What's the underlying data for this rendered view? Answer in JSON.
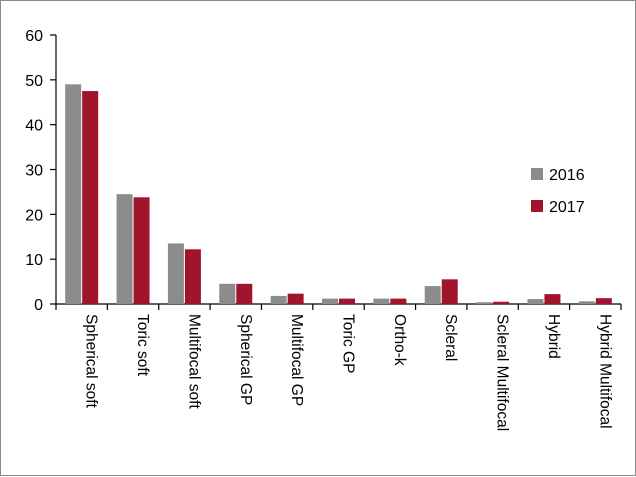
{
  "chart_data": {
    "type": "bar",
    "title": "",
    "xlabel": "",
    "ylabel": "",
    "ylim": [
      0,
      60
    ],
    "yticks": [
      0,
      10,
      20,
      30,
      40,
      50,
      60
    ],
    "grid": false,
    "legend_position": "right",
    "categories": [
      "Spherical soft",
      "Toric soft",
      "Multifocal soft",
      "Spherical GP",
      "Multifocal GP",
      "Toric GP",
      "Ortho-k",
      "Scleral",
      "Scleral Multifocal",
      "Hybrid",
      "Hybrid Multifocal"
    ],
    "series": [
      {
        "name": "2016",
        "color": "#8c8c8c",
        "values": [
          49,
          24.5,
          13.5,
          4.5,
          1.8,
          1.2,
          1.2,
          4.0,
          0.4,
          1.1,
          0.6
        ]
      },
      {
        "name": "2017",
        "color": "#a0142d",
        "values": [
          47.5,
          23.8,
          12.2,
          4.5,
          2.3,
          1.2,
          1.2,
          5.5,
          0.5,
          2.2,
          1.3
        ]
      }
    ]
  }
}
